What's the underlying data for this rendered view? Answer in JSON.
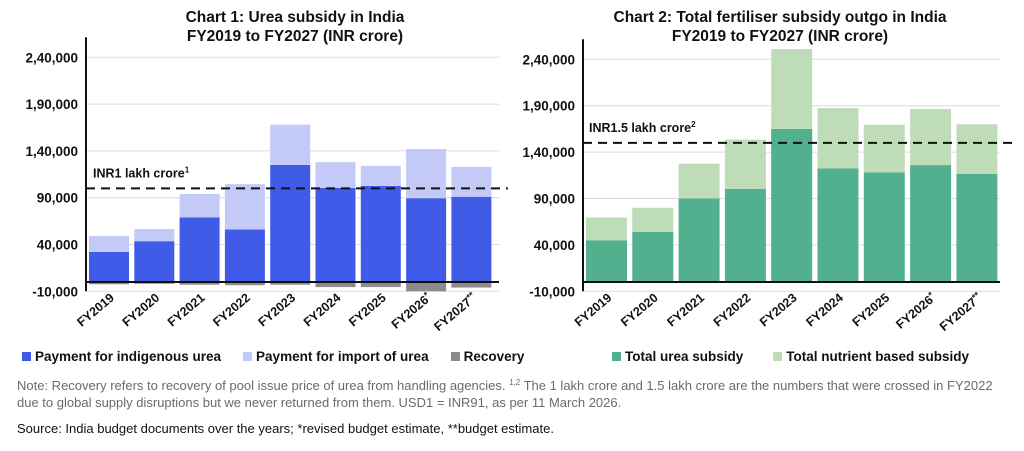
{
  "chart_data": [
    {
      "type": "bar",
      "stacked": true,
      "title": "Chart 1: Urea subsidy in India\nFY2019 to FY2027 (INR crore)",
      "title_lines": [
        "Chart 1: Urea subsidy in India",
        "FY2019 to FY2027 (INR crore)"
      ],
      "xlabel": "",
      "ylabel": "",
      "ylim": [
        -10000,
        240000
      ],
      "yticks": [
        -10000,
        40000,
        90000,
        140000,
        190000,
        240000
      ],
      "ytick_labels": [
        "-10,000",
        "40,000",
        "90,000",
        "1,40,000",
        "1,90,000",
        "2,40,000"
      ],
      "grid": true,
      "legend_position": "bottom",
      "categories": [
        "FY2019",
        "FY2020",
        "FY2021",
        "FY2022",
        "FY2023",
        "FY2024",
        "FY2025",
        "FY2026*",
        "FY2027**"
      ],
      "series": [
        {
          "name": "Payment for indigenous urea",
          "color": "#415be9",
          "values": [
            32000,
            43500,
            69000,
            56000,
            125000,
            100500,
            102500,
            89500,
            91000
          ]
        },
        {
          "name": "Payment for import of urea",
          "color": "#c3caf8",
          "values": [
            17000,
            13000,
            25000,
            48500,
            43000,
            27500,
            21500,
            52500,
            32000
          ]
        },
        {
          "name": "Recovery",
          "color": "#8c8c8c",
          "values": [
            -2500,
            -2000,
            -3000,
            -3500,
            -3000,
            -5500,
            -5500,
            -10000,
            -6000
          ]
        }
      ],
      "reference_line": {
        "value": 100000,
        "label": "INR1 lakh crore",
        "superscript": "1"
      }
    },
    {
      "type": "bar",
      "stacked": true,
      "title": "Chart 2: Total fertiliser subsidy outgo in India\nFY2019 to FY2027 (INR crore)",
      "title_lines": [
        "Chart 2: Total fertiliser subsidy outgo in India",
        "FY2019 to FY2027 (INR crore)"
      ],
      "xlabel": "",
      "ylabel": "",
      "ylim": [
        -10000,
        240000
      ],
      "yticks": [
        -10000,
        40000,
        90000,
        140000,
        190000,
        240000
      ],
      "ytick_labels": [
        "-10,000",
        "40,000",
        "90,000",
        "1,40,000",
        "1,90,000",
        "2,40,000"
      ],
      "grid": true,
      "legend_position": "bottom",
      "categories": [
        "FY2019",
        "FY2020",
        "FY2021",
        "FY2022",
        "FY2023",
        "FY2024",
        "FY2025",
        "FY2026*",
        "FY2027**"
      ],
      "series": [
        {
          "name": "Total urea subsidy",
          "color": "#52b08f",
          "values": [
            45000,
            54000,
            90000,
            100500,
            165000,
            122500,
            118000,
            126000,
            116500
          ]
        },
        {
          "name": "Total nutrient based subsidy",
          "color": "#bfdcb8",
          "values": [
            24500,
            26000,
            37500,
            53000,
            86000,
            65000,
            51500,
            60500,
            53500
          ]
        }
      ],
      "reference_line": {
        "value": 150000,
        "label": "INR1.5 lakh crore",
        "superscript": "2"
      }
    }
  ],
  "note": {
    "text_before": "Note: Recovery refers to recovery of pool issue price of urea from handling agencies. ",
    "superscript": "1,2",
    "text_after": " The 1 lakh crore and 1.5 lakh crore are the numbers that were crossed in FY2022 due to global supply disruptions but we never returned from them. USD1 = INR91, as per 11 March 2026."
  },
  "source": "Source: India budget documents over the years; *revised budget estimate, **budget estimate."
}
